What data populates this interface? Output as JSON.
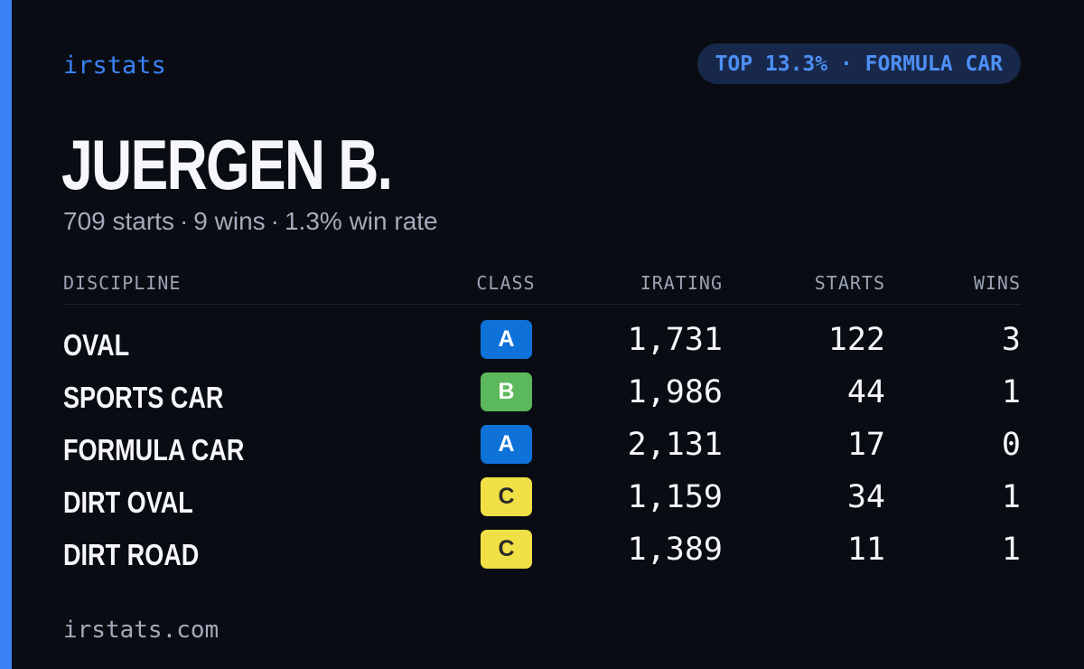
{
  "brand": "irstats",
  "badge": "TOP 13.3% · FORMULA CAR",
  "driver": {
    "name": "JUERGEN B.",
    "starts_text": "709 starts",
    "wins_text": "9 wins",
    "win_rate_text": "1.3% win rate",
    "separator": "·"
  },
  "table": {
    "headers": {
      "discipline": "DISCIPLINE",
      "class": "CLASS",
      "irating": "IRATING",
      "starts": "STARTS",
      "wins": "WINS"
    },
    "rows": [
      {
        "discipline": "OVAL",
        "class": "A",
        "irating": "1,731",
        "starts": "122",
        "wins": "3"
      },
      {
        "discipline": "SPORTS CAR",
        "class": "B",
        "irating": "1,986",
        "starts": "44",
        "wins": "1"
      },
      {
        "discipline": "FORMULA CAR",
        "class": "A",
        "irating": "2,131",
        "starts": "17",
        "wins": "0"
      },
      {
        "discipline": "DIRT OVAL",
        "class": "C",
        "irating": "1,159",
        "starts": "34",
        "wins": "1"
      },
      {
        "discipline": "DIRT ROAD",
        "class": "C",
        "irating": "1,389",
        "starts": "11",
        "wins": "1"
      }
    ]
  },
  "footer": "irstats.com",
  "colors": {
    "background": "#0a0c13",
    "accent": "#3b82f6",
    "badge_bg": "#18284a",
    "badge_text": "#4d8ff5",
    "class_A_bg": "#0e72d9",
    "class_A_text": "#ffffff",
    "class_B_bg": "#5cb85c",
    "class_B_text": "#ffffff",
    "class_C_bg": "#f0e046",
    "class_C_text": "#2a2a2a"
  }
}
